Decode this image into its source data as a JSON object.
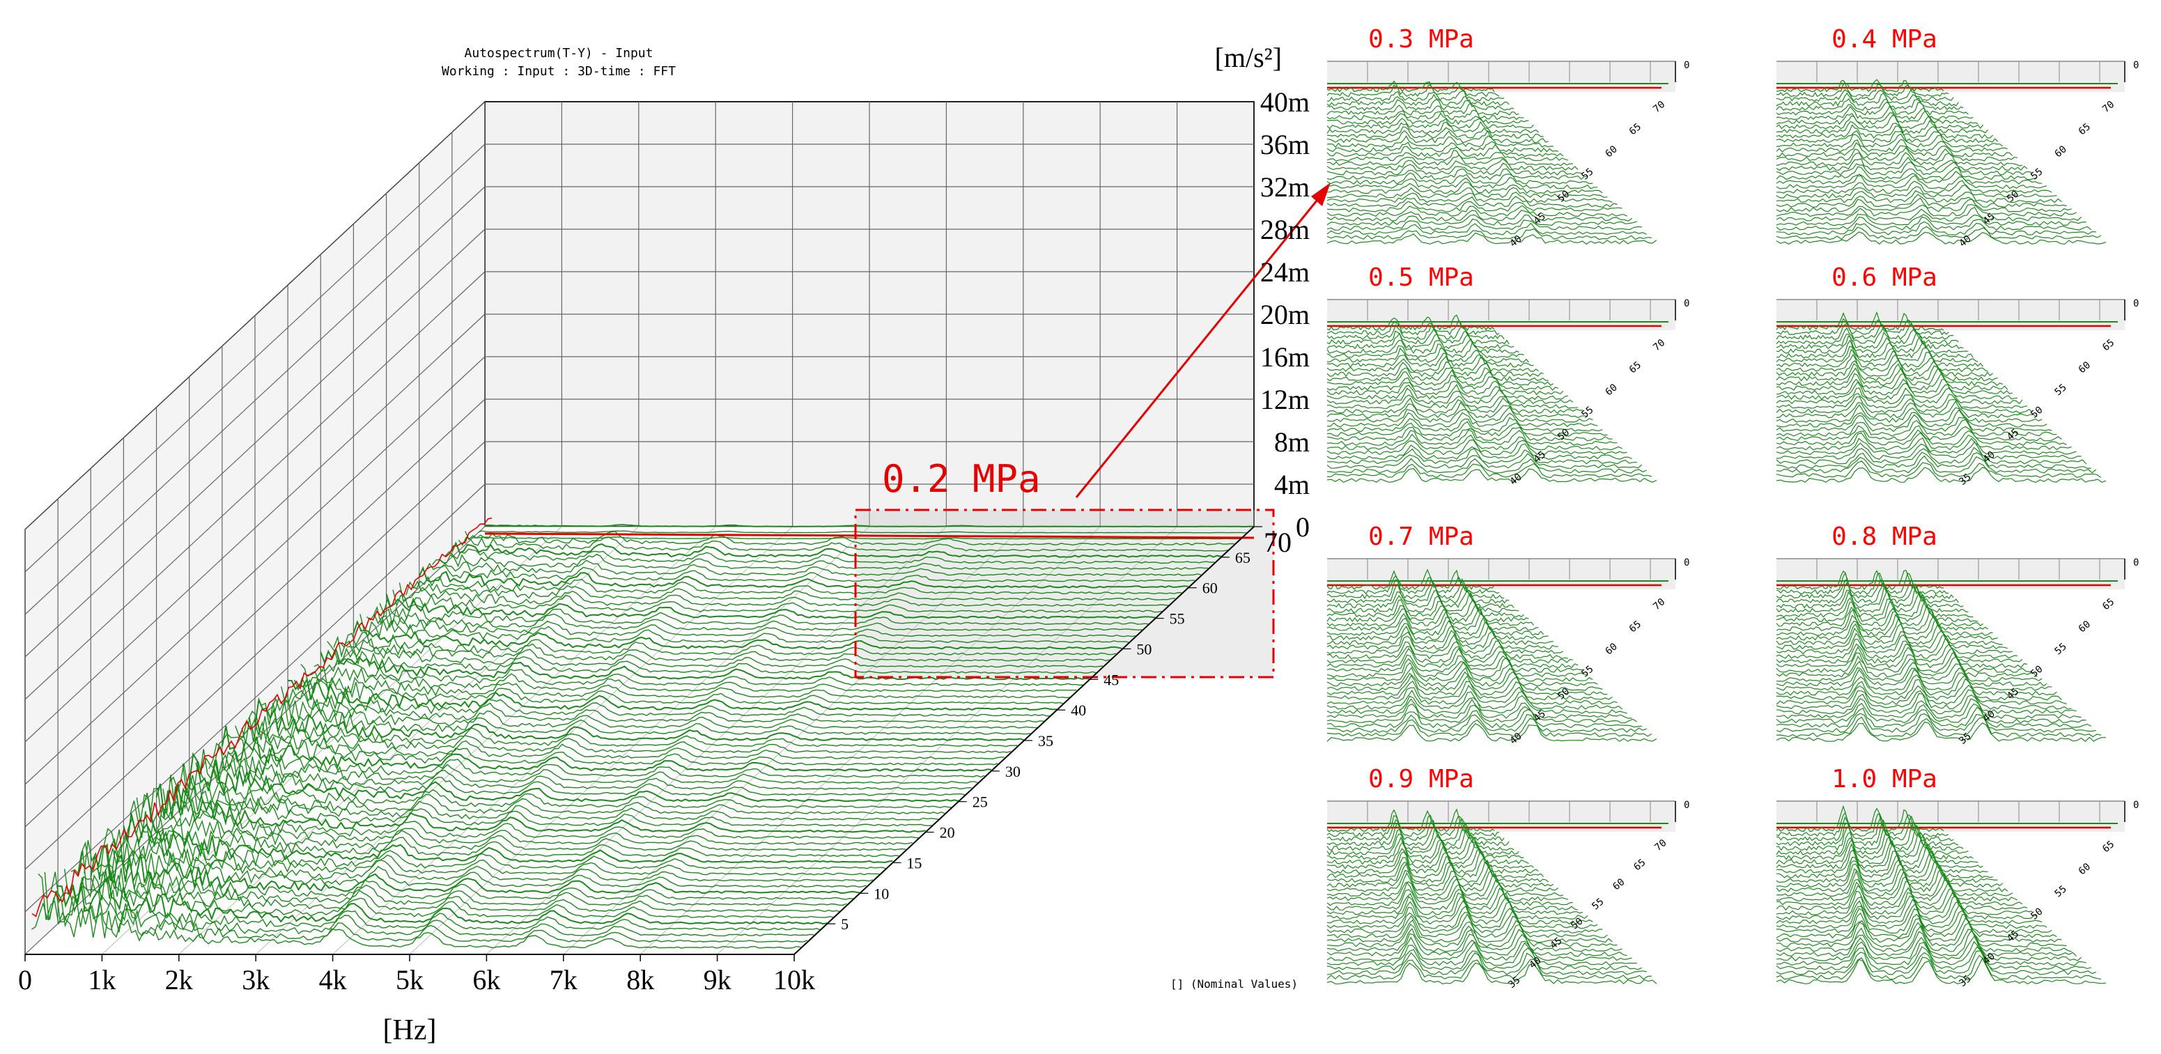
{
  "chart_data": {
    "type": "waterfall",
    "main": {
      "title_line1": "Autospectrum(T-Y) - Input",
      "title_line2": "Working : Input : 3D-time : FFT",
      "y_unit": "[m/s²]",
      "x_unit": "[Hz]",
      "x_ticks": [
        "0",
        "1k",
        "2k",
        "3k",
        "4k",
        "5k",
        "6k",
        "7k",
        "8k",
        "9k",
        "10k"
      ],
      "y_ticks": [
        "0",
        "4m",
        "8m",
        "12m",
        "16m",
        "20m",
        "24m",
        "28m",
        "32m",
        "36m",
        "40m"
      ],
      "z_ticks": [
        "5",
        "10",
        "15",
        "20",
        "25",
        "30",
        "35",
        "40",
        "45",
        "50",
        "55",
        "60",
        "65",
        "70"
      ],
      "x_range": [
        0,
        10000
      ],
      "y_range": [
        0,
        0.04
      ],
      "z_range": [
        0,
        70
      ],
      "footnote": "[] (Nominal Values)",
      "callout_label": "0.2 MPa",
      "series_color": "#1a8a1a",
      "reference_color": "#e60000"
    },
    "small_multiples": [
      {
        "label": "0.3 MPa",
        "z_ticks": [
          "40",
          "45",
          "50",
          "55",
          "60",
          "65",
          "70"
        ]
      },
      {
        "label": "0.4 MPa",
        "z_ticks": [
          "40",
          "45",
          "50",
          "55",
          "60",
          "65",
          "70"
        ]
      },
      {
        "label": "0.5 MPa",
        "z_ticks": [
          "40",
          "45",
          "50",
          "55",
          "60",
          "65",
          "70"
        ]
      },
      {
        "label": "0.6 MPa",
        "z_ticks": [
          "35",
          "40",
          "45",
          "50",
          "55",
          "60",
          "65"
        ]
      },
      {
        "label": "0.7 MPa",
        "z_ticks": [
          "40",
          "45",
          "50",
          "55",
          "60",
          "65",
          "70"
        ]
      },
      {
        "label": "0.8 MPa",
        "z_ticks": [
          "35",
          "40",
          "45",
          "50",
          "55",
          "60",
          "65"
        ]
      },
      {
        "label": "0.9 MPa",
        "z_ticks": [
          "35",
          "40",
          "45",
          "50",
          "55",
          "60",
          "65",
          "70"
        ]
      },
      {
        "label": "1.0 MPa",
        "z_ticks": [
          "35",
          "40",
          "45",
          "50",
          "55",
          "60",
          "65"
        ]
      }
    ],
    "small_top_tick": "0",
    "label_color": "#ff0000"
  }
}
